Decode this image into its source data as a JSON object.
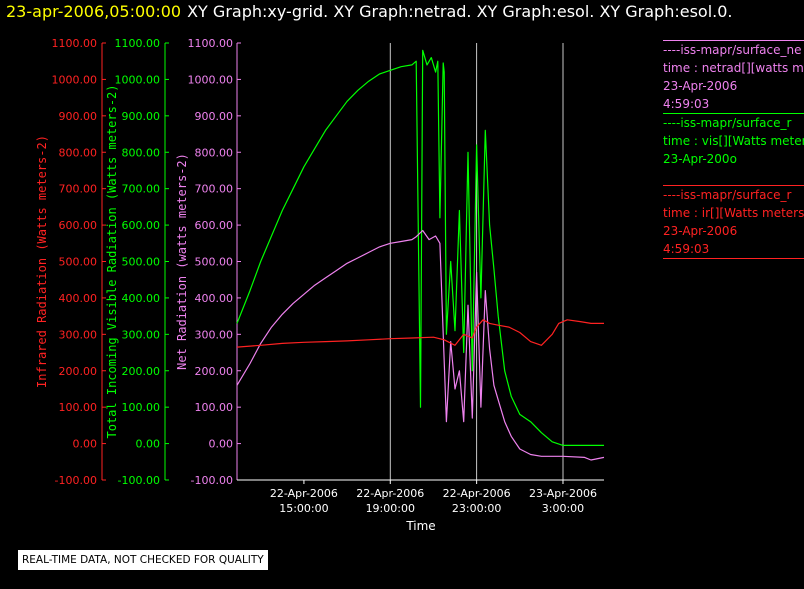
{
  "header": {
    "datetime": "23-apr-2006,05:00:00",
    "graphs": "XY Graph:xy-grid.  XY Graph:netrad.  XY Graph:esol.  XY Graph:esol.0."
  },
  "notice": "REAL-TIME DATA, NOT CHECKED FOR QUALITY",
  "legend": [
    {
      "name": "net",
      "color": "#ee82ee",
      "lines": [
        "----iss-mapr/surface_ne",
        "time : netrad[][watts me",
        "23-Apr-2006",
        "4:59:03"
      ]
    },
    {
      "name": "vis",
      "color": "#00ff00",
      "lines": [
        "----iss-mapr/surface_r",
        "time : vis[][Watts meter",
        "23-Apr-200o"
      ]
    },
    {
      "name": "ir",
      "color": "#ff2222",
      "lines": [
        "----iss-mapr/surface_r",
        "time : ir[][Watts meters",
        "23-Apr-2006",
        "4:59:03"
      ]
    }
  ],
  "chart_data": {
    "type": "line",
    "xlabel": "Time",
    "x_ticks": [
      {
        "label": [
          "22-Apr-2006",
          "15:00:00"
        ],
        "hour": 15
      },
      {
        "label": [
          "22-Apr-2006",
          "19:00:00"
        ],
        "hour": 19
      },
      {
        "label": [
          "22-Apr-2006",
          "23:00:00"
        ],
        "hour": 23
      },
      {
        "label": [
          "23-Apr-2006",
          "3:00:00"
        ],
        "hour": 27
      }
    ],
    "x_range_hours": [
      11.9,
      28.9
    ],
    "grid_hours": [
      19,
      23,
      27
    ],
    "y_range": [
      -100,
      1100
    ],
    "y_ticks": [
      "1100.00",
      "1000.00",
      "900.00",
      "800.00",
      "700.00",
      "600.00",
      "500.00",
      "400.00",
      "300.00",
      "200.00",
      "100.00",
      "0.00",
      "-100.00"
    ],
    "axes": [
      {
        "name": "ir-axis",
        "label": "Infrared Radiation (Watts meters-2)",
        "color": "#ff2222"
      },
      {
        "name": "vis-axis",
        "label": "Total Incoming Visible Radiation (Watts meters-2)",
        "color": "#00ff00"
      },
      {
        "name": "net-axis",
        "label": "Net Radiation (watts meters-2)",
        "color": "#ee82ee"
      }
    ],
    "series": [
      {
        "key": "vis",
        "color": "#00ff00",
        "points": [
          [
            11.9,
            330
          ],
          [
            12.5,
            420
          ],
          [
            13,
            500
          ],
          [
            13.5,
            570
          ],
          [
            14,
            640
          ],
          [
            14.5,
            700
          ],
          [
            15,
            760
          ],
          [
            15.5,
            810
          ],
          [
            16,
            860
          ],
          [
            16.5,
            900
          ],
          [
            17,
            940
          ],
          [
            17.5,
            970
          ],
          [
            18,
            995
          ],
          [
            18.5,
            1015
          ],
          [
            19,
            1025
          ],
          [
            19.5,
            1035
          ],
          [
            20,
            1040
          ],
          [
            20.2,
            1050
          ],
          [
            20.4,
            100
          ],
          [
            20.5,
            1080
          ],
          [
            20.7,
            1040
          ],
          [
            20.9,
            1060
          ],
          [
            21.1,
            1020
          ],
          [
            21.2,
            1050
          ],
          [
            21.3,
            620
          ],
          [
            21.45,
            1045
          ],
          [
            21.5,
            1020
          ],
          [
            21.6,
            300
          ],
          [
            21.8,
            500
          ],
          [
            22,
            310
          ],
          [
            22.2,
            640
          ],
          [
            22.4,
            250
          ],
          [
            22.6,
            800
          ],
          [
            22.8,
            200
          ],
          [
            23,
            820
          ],
          [
            23.2,
            400
          ],
          [
            23.4,
            860
          ],
          [
            23.6,
            600
          ],
          [
            23.8,
            480
          ],
          [
            24,
            350
          ],
          [
            24.3,
            200
          ],
          [
            24.6,
            130
          ],
          [
            25,
            80
          ],
          [
            25.5,
            60
          ],
          [
            26,
            30
          ],
          [
            26.5,
            5
          ],
          [
            27,
            -5
          ],
          [
            28,
            -5
          ],
          [
            28.9,
            -5
          ]
        ]
      },
      {
        "key": "net",
        "color": "#ee82ee",
        "points": [
          [
            11.9,
            160
          ],
          [
            12.5,
            220
          ],
          [
            13,
            275
          ],
          [
            13.5,
            320
          ],
          [
            14,
            355
          ],
          [
            14.5,
            385
          ],
          [
            15,
            410
          ],
          [
            15.5,
            435
          ],
          [
            16,
            455
          ],
          [
            16.5,
            475
          ],
          [
            17,
            495
          ],
          [
            17.5,
            510
          ],
          [
            18,
            525
          ],
          [
            18.5,
            540
          ],
          [
            19,
            550
          ],
          [
            19.5,
            555
          ],
          [
            20,
            560
          ],
          [
            20.2,
            568
          ],
          [
            20.5,
            585
          ],
          [
            20.8,
            560
          ],
          [
            21.1,
            570
          ],
          [
            21.3,
            550
          ],
          [
            21.6,
            60
          ],
          [
            21.8,
            280
          ],
          [
            22,
            150
          ],
          [
            22.2,
            200
          ],
          [
            22.4,
            60
          ],
          [
            22.6,
            380
          ],
          [
            22.8,
            70
          ],
          [
            23,
            470
          ],
          [
            23.2,
            100
          ],
          [
            23.4,
            420
          ],
          [
            23.6,
            260
          ],
          [
            23.8,
            160
          ],
          [
            24,
            120
          ],
          [
            24.3,
            60
          ],
          [
            24.6,
            20
          ],
          [
            25,
            -15
          ],
          [
            25.5,
            -30
          ],
          [
            26,
            -35
          ],
          [
            27,
            -35
          ],
          [
            28,
            -38
          ],
          [
            28.3,
            -45
          ],
          [
            28.9,
            -38
          ]
        ]
      },
      {
        "key": "ir",
        "color": "#ff2222",
        "points": [
          [
            11.9,
            265
          ],
          [
            13,
            270
          ],
          [
            14,
            275
          ],
          [
            15,
            278
          ],
          [
            16,
            280
          ],
          [
            17,
            282
          ],
          [
            18,
            285
          ],
          [
            19,
            288
          ],
          [
            20,
            290
          ],
          [
            21,
            292
          ],
          [
            21.5,
            285
          ],
          [
            22,
            270
          ],
          [
            22.4,
            300
          ],
          [
            22.8,
            290
          ],
          [
            23,
            320
          ],
          [
            23.3,
            340
          ],
          [
            23.6,
            330
          ],
          [
            24,
            325
          ],
          [
            24.5,
            320
          ],
          [
            25,
            305
          ],
          [
            25.5,
            280
          ],
          [
            26,
            270
          ],
          [
            26.5,
            300
          ],
          [
            26.8,
            330
          ],
          [
            27.2,
            340
          ],
          [
            27.8,
            335
          ],
          [
            28.3,
            330
          ],
          [
            28.9,
            330
          ]
        ]
      }
    ]
  }
}
